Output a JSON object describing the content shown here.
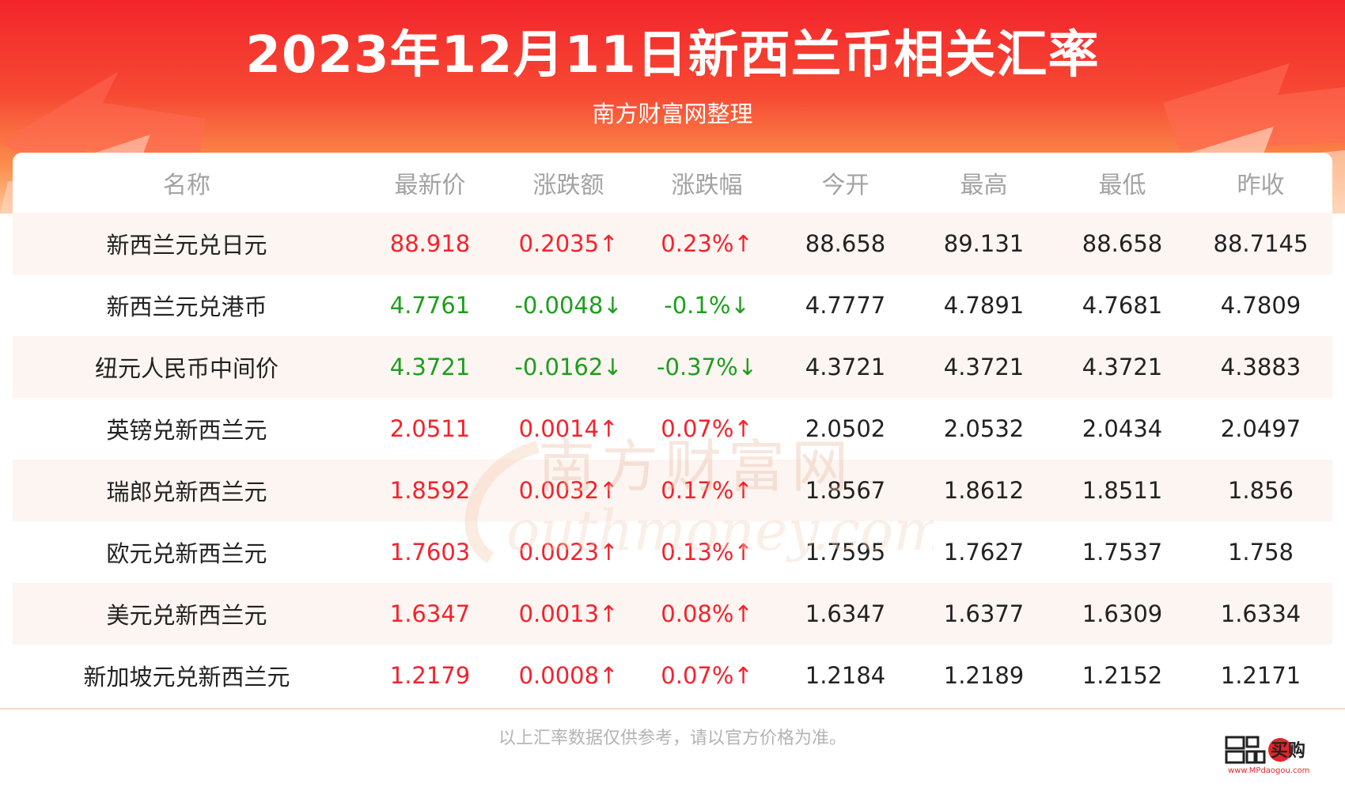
{
  "header": {
    "title": "2023年12月11日新西兰币相关汇率",
    "subtitle": "南方财富网整理"
  },
  "table": {
    "columns": [
      "名称",
      "最新价",
      "涨跌额",
      "涨跌幅",
      "今开",
      "最高",
      "最低",
      "昨收"
    ],
    "rows": [
      {
        "name": "新西兰元兑日元",
        "latest": "88.918",
        "change": "0.2035↑",
        "pct": "0.23%↑",
        "open": "88.658",
        "high": "89.131",
        "low": "88.658",
        "prev": "88.7145",
        "trend": "up"
      },
      {
        "name": "新西兰元兑港币",
        "latest": "4.7761",
        "change": "-0.0048↓",
        "pct": "-0.1%↓",
        "open": "4.7777",
        "high": "4.7891",
        "low": "4.7681",
        "prev": "4.7809",
        "trend": "down"
      },
      {
        "name": "纽元人民币中间价",
        "latest": "4.3721",
        "change": "-0.0162↓",
        "pct": "-0.37%↓",
        "open": "4.3721",
        "high": "4.3721",
        "low": "4.3721",
        "prev": "4.3883",
        "trend": "down"
      },
      {
        "name": "英镑兑新西兰元",
        "latest": "2.0511",
        "change": "0.0014↑",
        "pct": "0.07%↑",
        "open": "2.0502",
        "high": "2.0532",
        "low": "2.0434",
        "prev": "2.0497",
        "trend": "up"
      },
      {
        "name": "瑞郎兑新西兰元",
        "latest": "1.8592",
        "change": "0.0032↑",
        "pct": "0.17%↑",
        "open": "1.8567",
        "high": "1.8612",
        "low": "1.8511",
        "prev": "1.856",
        "trend": "up"
      },
      {
        "name": "欧元兑新西兰元",
        "latest": "1.7603",
        "change": "0.0023↑",
        "pct": "0.13%↑",
        "open": "1.7595",
        "high": "1.7627",
        "low": "1.7537",
        "prev": "1.758",
        "trend": "up"
      },
      {
        "name": "美元兑新西兰元",
        "latest": "1.6347",
        "change": "0.0013↑",
        "pct": "0.08%↑",
        "open": "1.6347",
        "high": "1.6377",
        "low": "1.6309",
        "prev": "1.6334",
        "trend": "up"
      },
      {
        "name": "新加坡元兑新西兰元",
        "latest": "1.2179",
        "change": "0.0008↑",
        "pct": "0.07%↑",
        "open": "1.2184",
        "high": "1.2189",
        "low": "1.2152",
        "prev": "1.2171",
        "trend": "up"
      }
    ]
  },
  "watermark": {
    "cn": "南方财富网",
    "en": "outhmoney.com"
  },
  "footer": {
    "note": "以上汇率数据仅供参考，请以官方价格为准。",
    "logo_text": "买购",
    "logo_url": "www.MPdaogou.com"
  },
  "colors": {
    "up": "#f5222d",
    "down": "#1c9f1c",
    "banner": "#f3252c"
  }
}
